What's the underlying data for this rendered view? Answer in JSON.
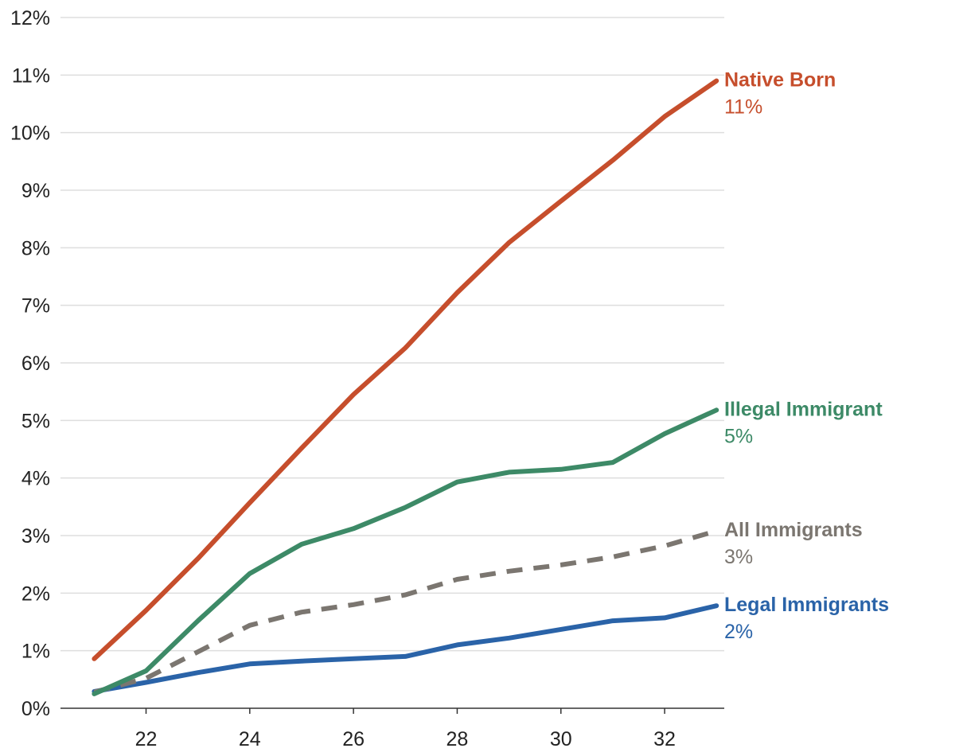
{
  "chart_data": {
    "type": "line",
    "x": [
      21,
      22,
      23,
      24,
      25,
      26,
      27,
      28,
      29,
      30,
      31,
      32,
      33
    ],
    "xticks": [
      "22",
      "24",
      "26",
      "28",
      "30",
      "32"
    ],
    "xtick_values": [
      22,
      24,
      26,
      28,
      30,
      32
    ],
    "xlim": [
      20.35,
      33.15
    ],
    "yticks": [
      "0%",
      "1%",
      "2%",
      "3%",
      "4%",
      "5%",
      "6%",
      "7%",
      "8%",
      "9%",
      "10%",
      "11%",
      "12%"
    ],
    "ylim": [
      0,
      12
    ],
    "grid": true,
    "series": [
      {
        "name": "Native Born",
        "label": "Native Born",
        "end_label": "11%",
        "color": "#c64e2c",
        "dashed": false,
        "values": [
          0.86,
          1.7,
          2.6,
          3.57,
          4.52,
          5.45,
          6.26,
          7.22,
          8.09,
          8.81,
          9.52,
          10.28,
          10.9
        ]
      },
      {
        "name": "Illegal Immigrant",
        "label": "Illegal Immigrant",
        "end_label": "5%",
        "color": "#3d8a67",
        "dashed": false,
        "values": [
          0.25,
          0.65,
          1.52,
          2.34,
          2.85,
          3.12,
          3.49,
          3.93,
          4.1,
          4.15,
          4.27,
          4.77,
          5.18
        ]
      },
      {
        "name": "All Immigrants",
        "label": "All Immigrants",
        "end_label": "3%",
        "color": "#7b7670",
        "dashed": true,
        "values": [
          0.28,
          0.52,
          0.98,
          1.44,
          1.67,
          1.8,
          1.97,
          2.24,
          2.38,
          2.49,
          2.63,
          2.82,
          3.08
        ]
      },
      {
        "name": "Legal Immigrants",
        "label": "Legal Immigrants",
        "end_label": "2%",
        "color": "#2a63a8",
        "dashed": false,
        "values": [
          0.29,
          0.45,
          0.62,
          0.77,
          0.82,
          0.86,
          0.9,
          1.1,
          1.22,
          1.37,
          1.52,
          1.57,
          1.78
        ]
      }
    ]
  }
}
